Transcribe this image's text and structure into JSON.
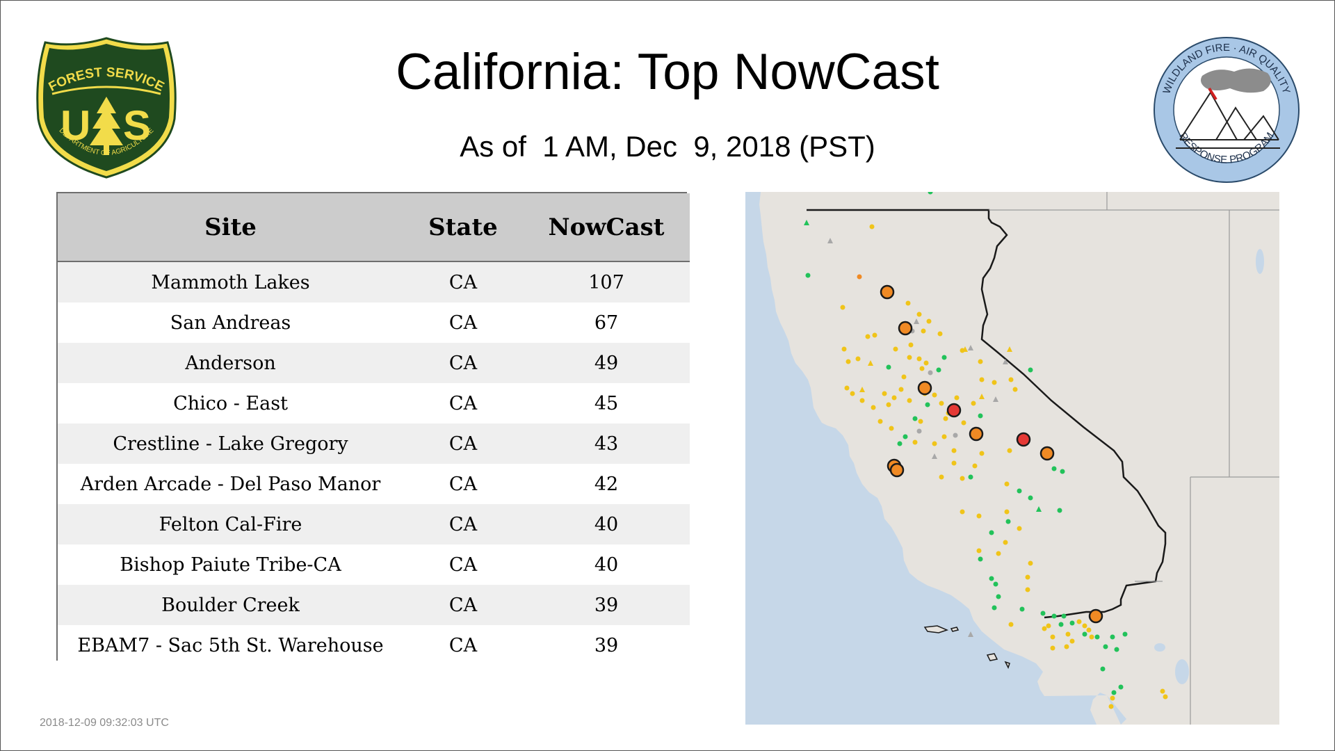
{
  "header": {
    "title": "California: Top NowCast",
    "subtitle": "As of  1 AM, Dec  9, 2018 (PST)"
  },
  "logos": {
    "left": {
      "top_text": "FOREST SERVICE",
      "letters": "U S",
      "bottom_text": "DEPARTMENT OF AGRICULTURE"
    },
    "right": {
      "top_text": "WILDLAND FIRE · AIR QUALITY",
      "bottom_text": "RESPONSE PROGRAM"
    }
  },
  "table": {
    "headers": [
      "Site",
      "State",
      "NowCast"
    ],
    "rows": [
      [
        "Mammoth Lakes",
        "CA",
        "107"
      ],
      [
        "San Andreas",
        "CA",
        "67"
      ],
      [
        "Anderson",
        "CA",
        "49"
      ],
      [
        "Chico - East",
        "CA",
        "45"
      ],
      [
        "Crestline - Lake Gregory",
        "CA",
        "43"
      ],
      [
        "Arden Arcade - Del Paso Manor",
        "CA",
        "42"
      ],
      [
        "Felton Cal-Fire",
        "CA",
        "40"
      ],
      [
        "Bishop Paiute Tribe-CA",
        "CA",
        "40"
      ],
      [
        "Boulder Creek",
        "CA",
        "39"
      ],
      [
        "EBAM7 - Sac 5th St. Warehouse",
        "CA",
        "39"
      ]
    ]
  },
  "footer": {
    "timestamp": "2018-12-09 09:32:03 UTC"
  },
  "colors": {
    "aqi_good": "#22c25a",
    "aqi_moderate": "#f0c419",
    "aqi_usg": "#f08a24",
    "aqi_unhealthy": "#e53935",
    "no_data": "#a8a8a8",
    "ocean": "#c6d7e8",
    "land": "#e6e3de",
    "usfs_green": "#1f4a1f",
    "usfs_gold": "#f2dc4a"
  }
}
